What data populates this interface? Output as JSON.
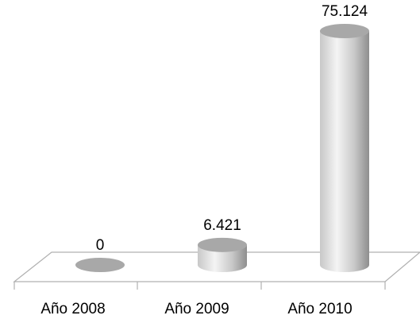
{
  "chart_data": {
    "type": "bar",
    "style": "3d-cylinder",
    "categories": [
      "Año 2008",
      "Año 2009",
      "Año 2010"
    ],
    "values": [
      0,
      6421,
      75124
    ],
    "data_labels": [
      "0",
      "6.421",
      "75.124"
    ],
    "title": "",
    "xlabel": "",
    "ylabel": "",
    "ylim": [
      0,
      75124
    ],
    "grid": false,
    "legend": "none",
    "colors": {
      "bar_light": "#f4f4f4",
      "bar_mid": "#c8c8c8",
      "bar_dark": "#8e8e8e",
      "top_cap": "#a8a8a8",
      "floor_line": "#b0b0b0"
    }
  }
}
